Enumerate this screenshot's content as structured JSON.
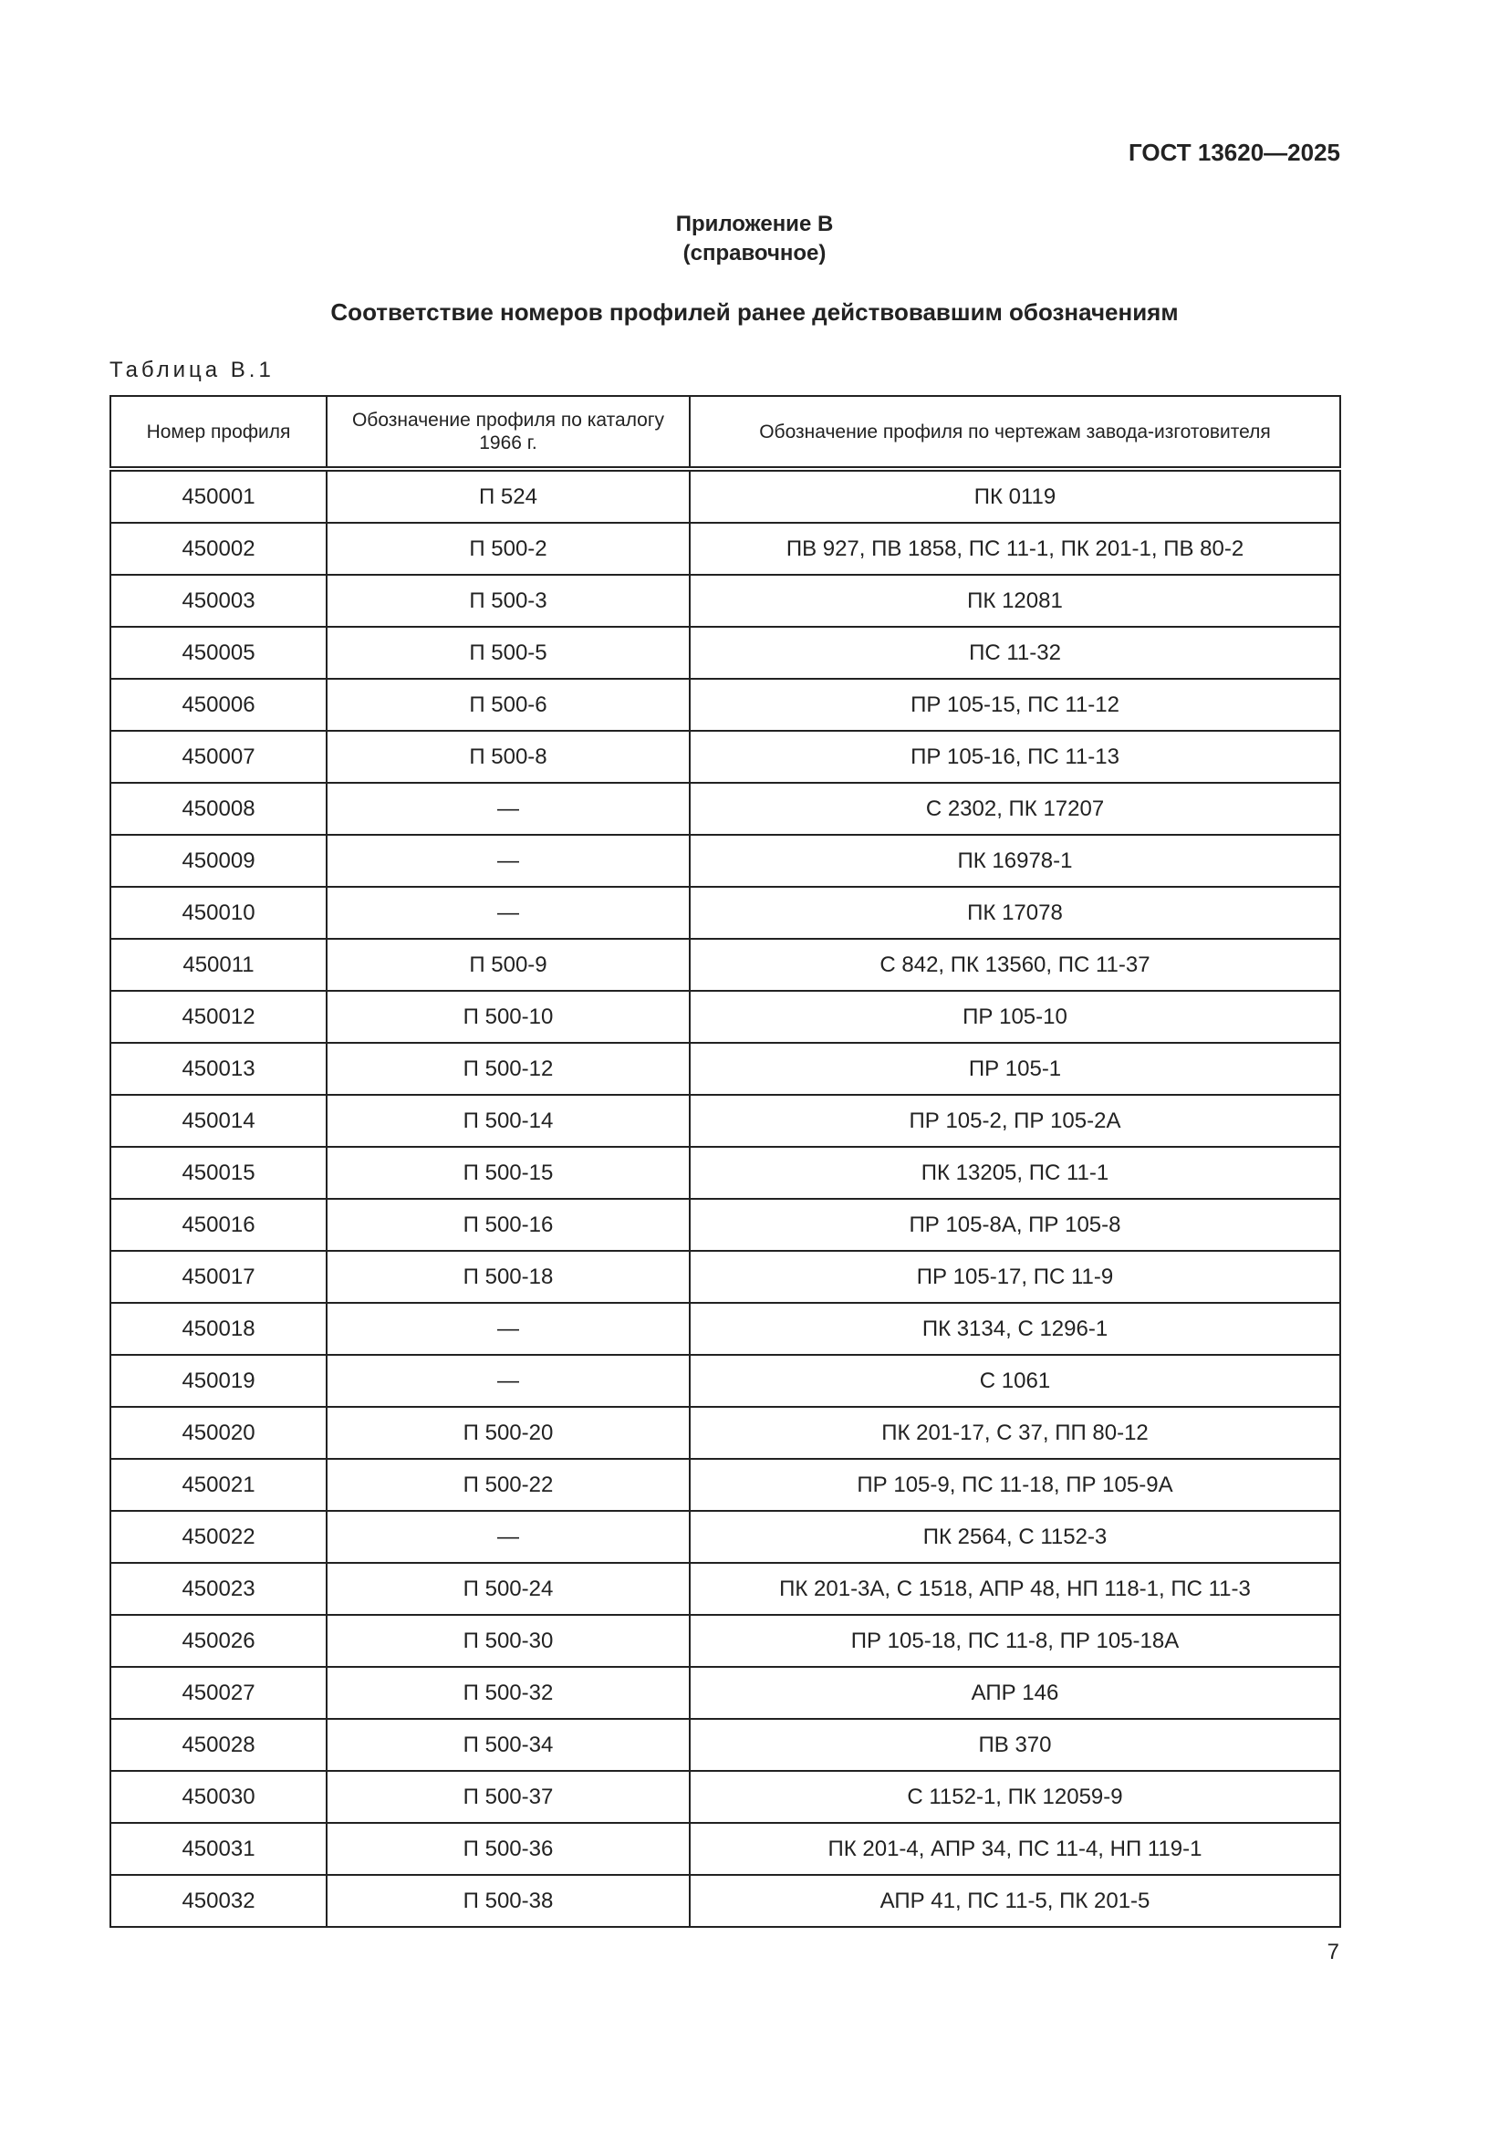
{
  "header": {
    "standard": "ГОСТ 13620—2025"
  },
  "appendix": {
    "title": "Приложение В",
    "type": "(справочное)"
  },
  "heading": "Соответствие номеров профилей ранее действовавшим обозначениям",
  "table_label": "Таблица В.1",
  "table": {
    "columns": [
      "Номер профиля",
      "Обозначение профиля по каталогу 1966 г.",
      "Обозначение профиля по чертежам завода-изготовителя"
    ],
    "rows": [
      [
        "450001",
        "П 524",
        "ПК 0119"
      ],
      [
        "450002",
        "П 500-2",
        "ПВ 927, ПВ 1858, ПС 11-1, ПК 201-1, ПВ 80-2"
      ],
      [
        "450003",
        "П 500-3",
        "ПК 12081"
      ],
      [
        "450005",
        "П 500-5",
        "ПС 11-32"
      ],
      [
        "450006",
        "П 500-6",
        "ПР 105-15, ПС 11-12"
      ],
      [
        "450007",
        "П 500-8",
        "ПР 105-16, ПС 11-13"
      ],
      [
        "450008",
        "—",
        "С 2302, ПК 17207"
      ],
      [
        "450009",
        "—",
        "ПК 16978-1"
      ],
      [
        "450010",
        "—",
        "ПК 17078"
      ],
      [
        "450011",
        "П 500-9",
        "С 842, ПК 13560, ПС 11-37"
      ],
      [
        "450012",
        "П 500-10",
        "ПР 105-10"
      ],
      [
        "450013",
        "П 500-12",
        "ПР 105-1"
      ],
      [
        "450014",
        "П 500-14",
        "ПР 105-2, ПР 105-2А"
      ],
      [
        "450015",
        "П 500-15",
        "ПК 13205, ПС 11-1"
      ],
      [
        "450016",
        "П 500-16",
        "ПР 105-8А, ПР 105-8"
      ],
      [
        "450017",
        "П 500-18",
        "ПР 105-17, ПС 11-9"
      ],
      [
        "450018",
        "—",
        "ПК 3134, С 1296-1"
      ],
      [
        "450019",
        "—",
        "С 1061"
      ],
      [
        "450020",
        "П 500-20",
        "ПК 201-17, С 37, ПП 80-12"
      ],
      [
        "450021",
        "П 500-22",
        "ПР 105-9, ПС 11-18, ПР 105-9А"
      ],
      [
        "450022",
        "—",
        "ПК 2564, С 1152-3"
      ],
      [
        "450023",
        "П 500-24",
        "ПК 201-3А, С 1518, АПР 48, НП 118-1, ПС 11-3"
      ],
      [
        "450026",
        "П 500-30",
        "ПР 105-18, ПС 11-8, ПР 105-18А"
      ],
      [
        "450027",
        "П 500-32",
        "АПР 146"
      ],
      [
        "450028",
        "П 500-34",
        "ПВ 370"
      ],
      [
        "450030",
        "П 500-37",
        "С 1152-1, ПК 12059-9"
      ],
      [
        "450031",
        "П 500-36",
        "ПК 201-4, АПР 34, ПС 11-4, НП 119-1"
      ],
      [
        "450032",
        "П 500-38",
        "АПР 41, ПС 11-5, ПК 201-5"
      ]
    ]
  },
  "page_number": "7"
}
